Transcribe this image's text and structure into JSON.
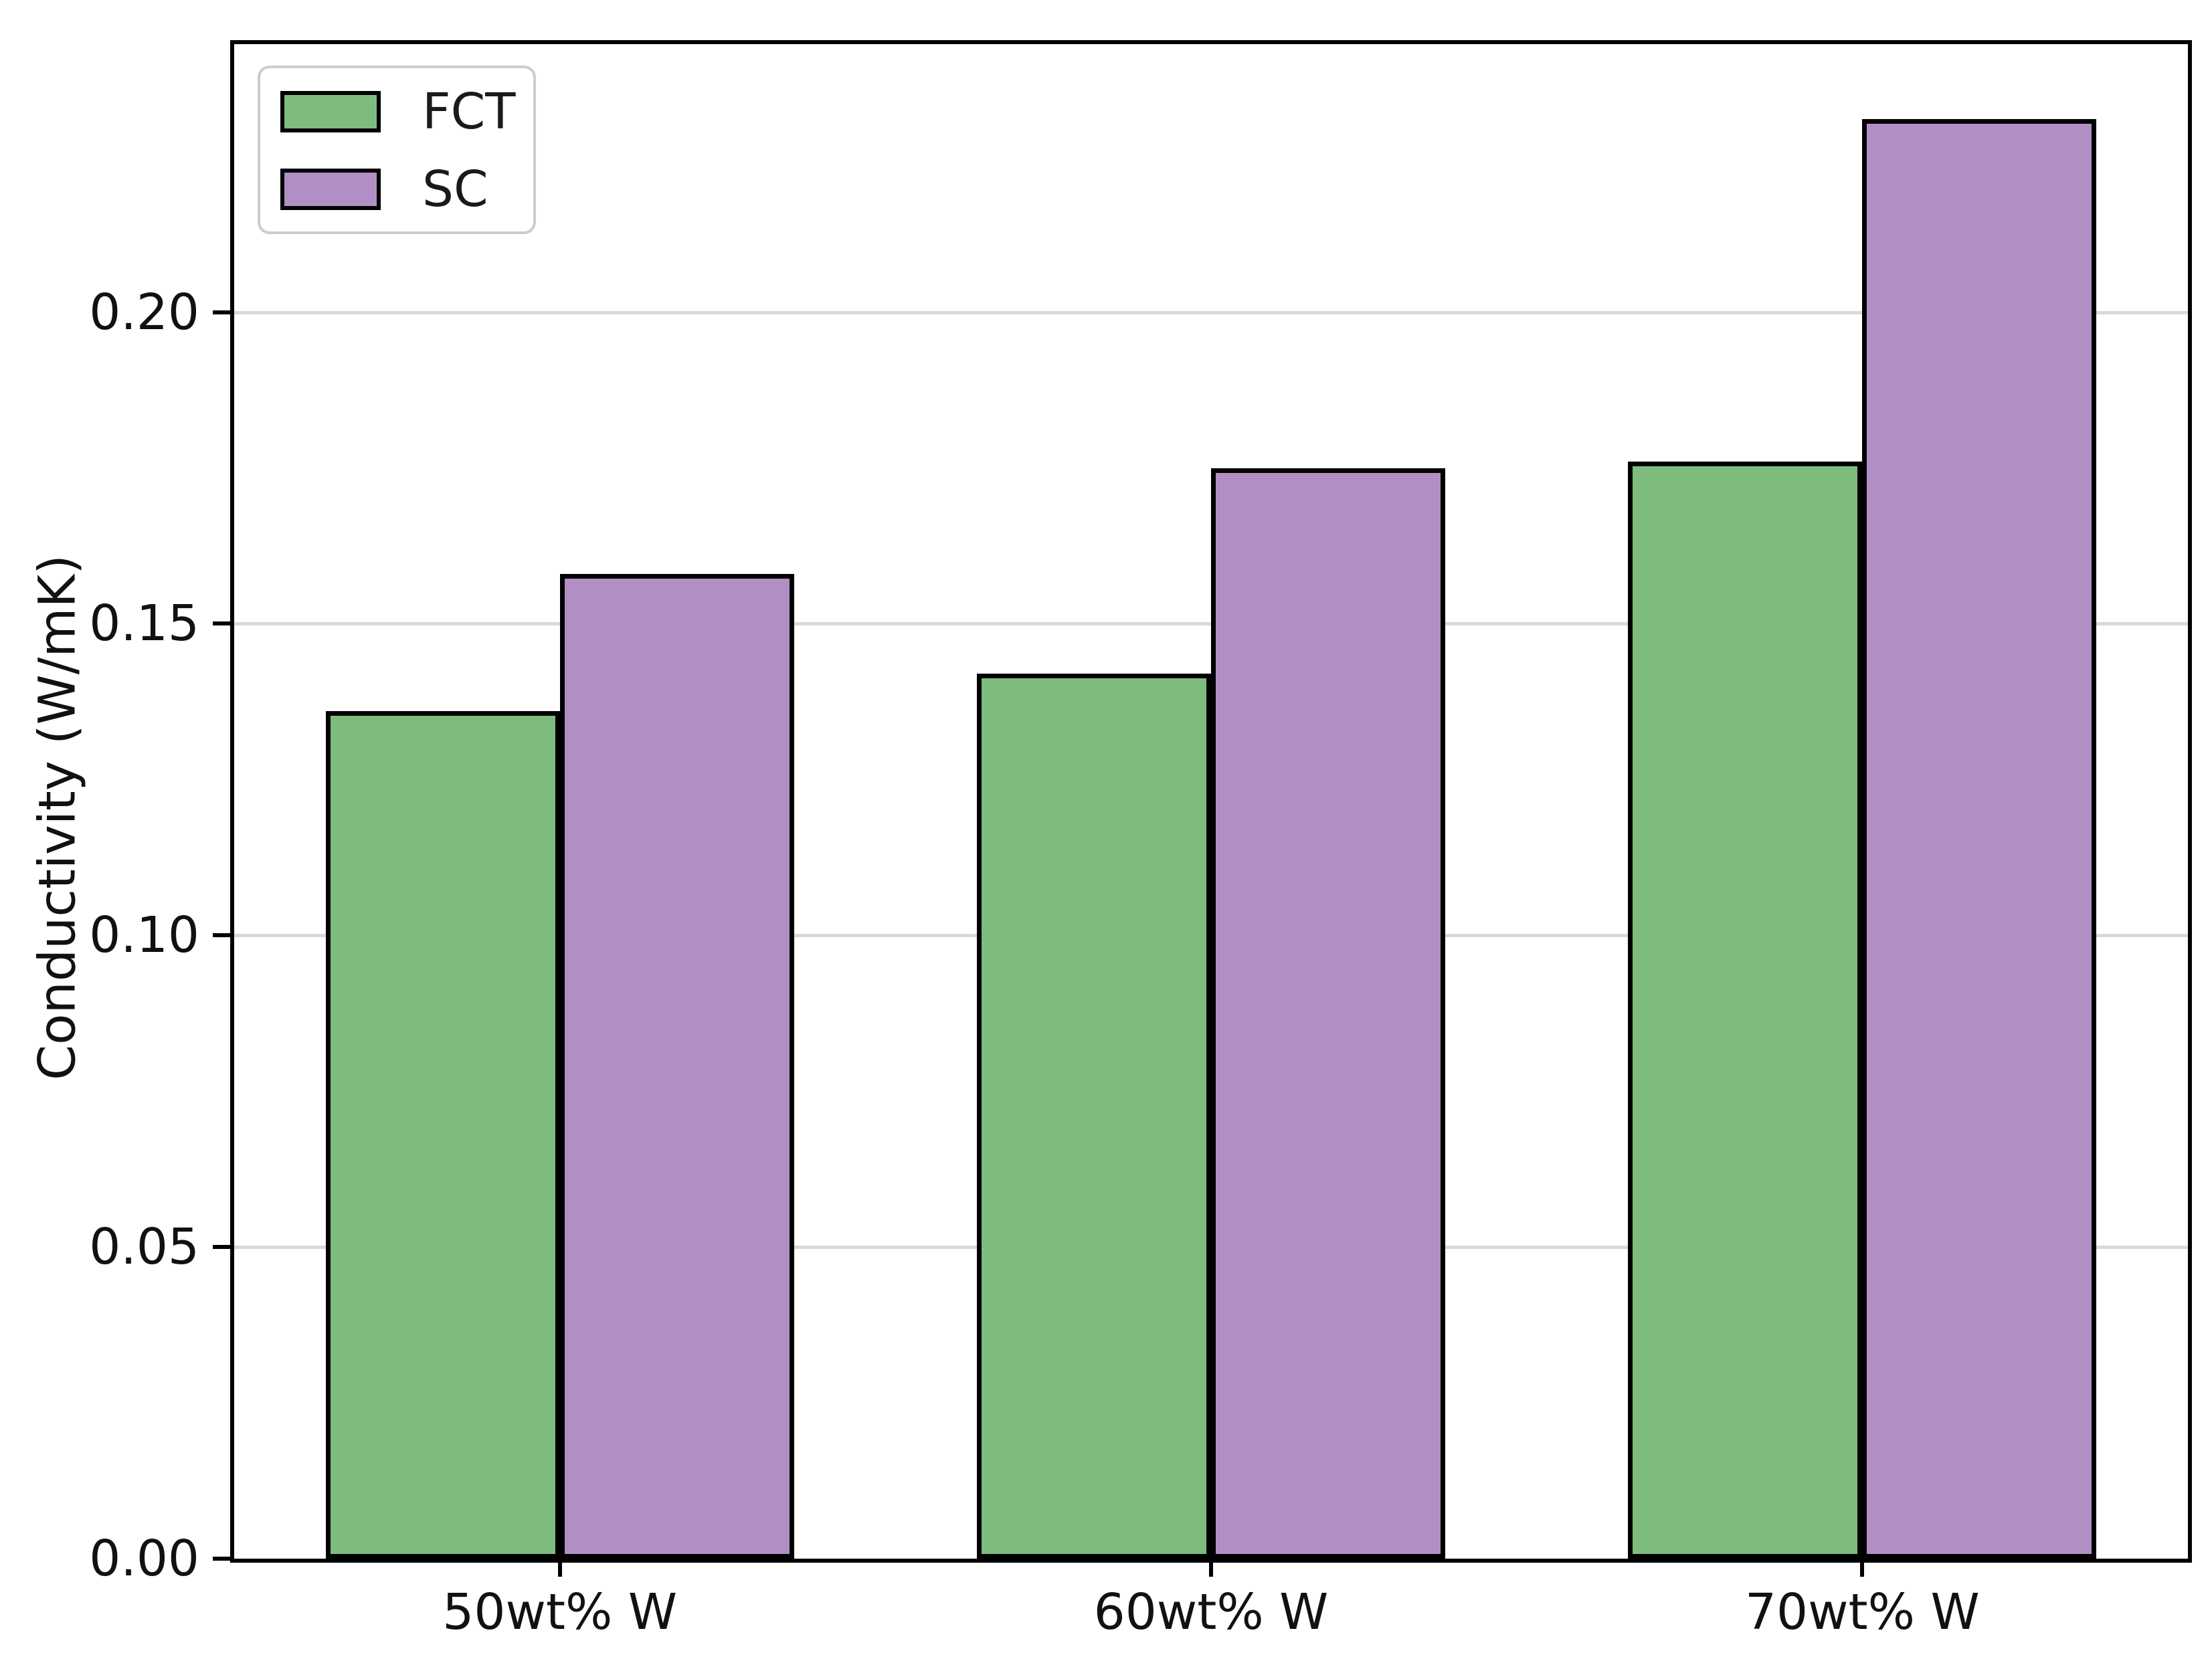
{
  "chart_data": {
    "type": "bar",
    "title": "",
    "categories": [
      "50wt% W",
      "60wt% W",
      "70wt% W"
    ],
    "series": [
      {
        "name": "FCT",
        "color": "#7ebc7e",
        "values": [
          0.136,
          0.142,
          0.176
        ]
      },
      {
        "name": "SC",
        "color": "#b18fc5",
        "values": [
          0.158,
          0.175,
          0.231
        ]
      }
    ],
    "xlabel": "",
    "ylabel": "Conductivity (W/mK)",
    "ylim": [
      0,
      0.243
    ],
    "yticks": {
      "values": [
        0,
        0.05,
        0.1,
        0.15,
        0.2
      ],
      "labels": [
        "0.00",
        "0.05",
        "0.10",
        "0.15",
        "0.20"
      ]
    },
    "grid": "horizontal-only",
    "grid_color": "#d9d9d9",
    "bar_edge_color": "#000000",
    "legend_position": "upper-left"
  }
}
